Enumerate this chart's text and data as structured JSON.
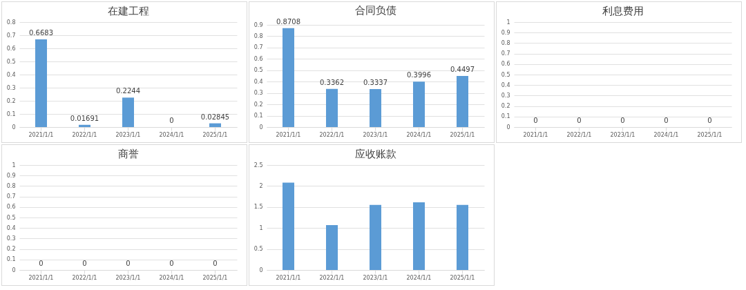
{
  "chart_data": [
    {
      "type": "bar",
      "title": "在建工程",
      "categories": [
        "2021/1/1",
        "2022/1/1",
        "2023/1/1",
        "2024/1/1",
        "2025/1/1"
      ],
      "values": [
        0.6683,
        0.01691,
        0.2244,
        0,
        0.02845
      ],
      "color": "#5b9bd5",
      "ylim": [
        0,
        0.8
      ],
      "yticks": [
        0,
        0.1,
        0.2,
        0.3,
        0.4,
        0.5,
        0.6,
        0.7,
        0.8
      ],
      "grid": "y",
      "data_labels": true
    },
    {
      "type": "bar",
      "title": "合同负债",
      "categories": [
        "2021/1/1",
        "2022/1/1",
        "2023/1/1",
        "2024/1/1",
        "2025/1/1"
      ],
      "values": [
        0.8708,
        0.3362,
        0.3337,
        0.3996,
        0.4497
      ],
      "color": "#5b9bd5",
      "ylim": [
        0,
        0.9
      ],
      "yticks": [
        0,
        0.1,
        0.2,
        0.3,
        0.4,
        0.5,
        0.6,
        0.7,
        0.8,
        0.9
      ],
      "grid": "y",
      "data_labels": true
    },
    {
      "type": "bar",
      "title": "利息费用",
      "categories": [
        "2021/1/1",
        "2022/1/1",
        "2023/1/1",
        "2024/1/1",
        "2025/1/1"
      ],
      "values": [
        0,
        0,
        0,
        0,
        0
      ],
      "color": "#5b9bd5",
      "ylim": [
        0,
        1
      ],
      "yticks": [
        0,
        0.1,
        0.2,
        0.3,
        0.4,
        0.5,
        0.6,
        0.7,
        0.8,
        0.9,
        1
      ],
      "grid": "y",
      "data_labels": true
    },
    {
      "type": "bar",
      "title": "商誉",
      "categories": [
        "2021/1/1",
        "2022/1/1",
        "2023/1/1",
        "2024/1/1",
        "2025/1/1"
      ],
      "values": [
        0,
        0,
        0,
        0,
        0
      ],
      "color": "#5b9bd5",
      "ylim": [
        0,
        1
      ],
      "yticks": [
        0,
        0.1,
        0.2,
        0.3,
        0.4,
        0.5,
        0.6,
        0.7,
        0.8,
        0.9,
        1
      ],
      "grid": "y",
      "data_labels": true
    },
    {
      "type": "bar",
      "title": "应收账款",
      "categories": [
        "2021/1/1",
        "2022/1/1",
        "2023/1/1",
        "2024/1/1",
        "2025/1/1"
      ],
      "values": [
        2.08,
        1.07,
        1.55,
        1.61,
        1.55
      ],
      "color": "#5b9bd5",
      "ylim": [
        0,
        2.5
      ],
      "yticks": [
        0,
        0.5,
        1,
        1.5,
        2,
        2.5
      ],
      "grid": "y"
    }
  ]
}
